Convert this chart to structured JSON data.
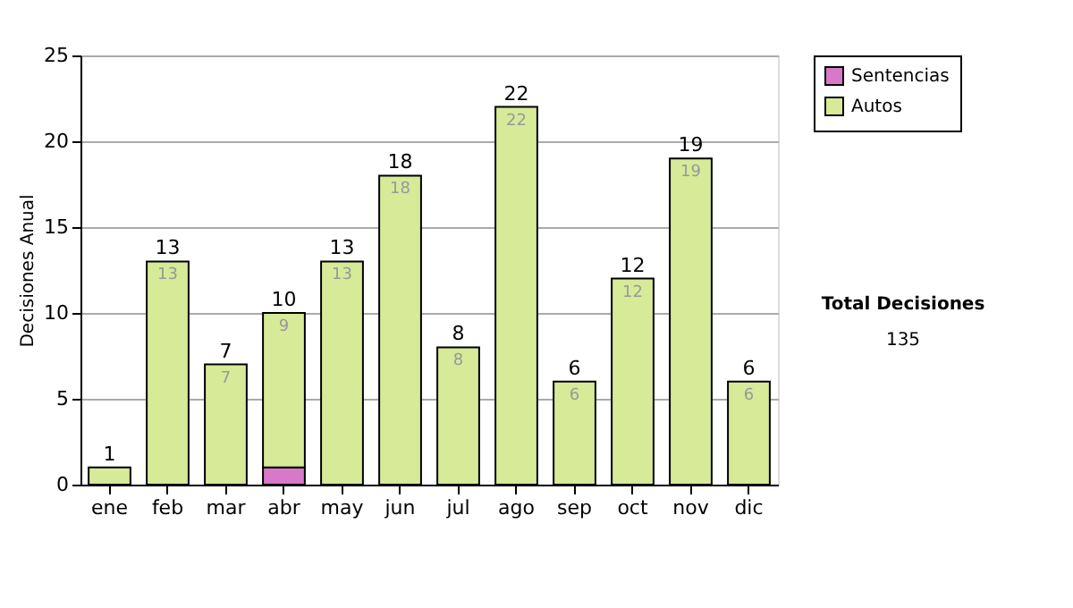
{
  "chart_data": {
    "type": "bar",
    "stacked": true,
    "ylabel": "Decisiones Anual",
    "categories": [
      "ene",
      "feb",
      "mar",
      "abr",
      "may",
      "jun",
      "jul",
      "ago",
      "sep",
      "oct",
      "nov",
      "dic"
    ],
    "series": [
      {
        "name": "Sentencias",
        "color": "#d878c8",
        "values": [
          0,
          0,
          0,
          1,
          0,
          0,
          0,
          0,
          0,
          0,
          0,
          0
        ]
      },
      {
        "name": "Autos",
        "color": "#d6ea98",
        "values": [
          1,
          13,
          7,
          9,
          13,
          18,
          8,
          22,
          6,
          12,
          19,
          6
        ],
        "value_labels": [
          null,
          "13",
          "7",
          "9",
          "13",
          "18",
          "8",
          "22",
          "6",
          "12",
          "19",
          "6"
        ]
      }
    ],
    "totals": [
      "1",
      "13",
      "7",
      "10",
      "13",
      "18",
      "8",
      "22",
      "6",
      "12",
      "19",
      "6"
    ],
    "ylim": [
      0,
      25
    ],
    "yticks": [
      0,
      5,
      10,
      15,
      20,
      25
    ],
    "grid": "y",
    "legend": "right",
    "annotations": [
      "Total Decisiones",
      "135"
    ]
  }
}
